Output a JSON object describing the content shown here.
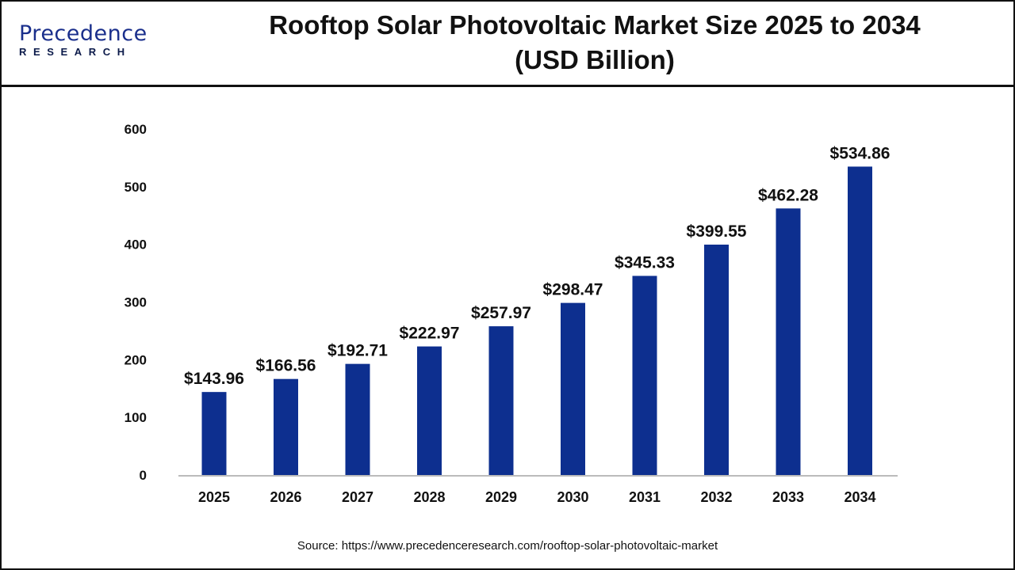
{
  "logo": {
    "main": "Precedence",
    "sub": "RESEARCH"
  },
  "title_line1": "Rooftop Solar Photovoltaic Market Size 2025 to 2034",
  "title_line2": "(USD Billion)",
  "source": "Source: https://www.precedenceresearch.com/rooftop-solar-photovoltaic-market",
  "chart_data": {
    "type": "bar",
    "title": "Rooftop Solar Photovoltaic Market Size 2025 to 2034 (USD Billion)",
    "categories": [
      "2025",
      "2026",
      "2027",
      "2028",
      "2029",
      "2030",
      "2031",
      "2032",
      "2033",
      "2034"
    ],
    "values": [
      143.96,
      166.56,
      192.71,
      222.97,
      257.97,
      298.47,
      345.33,
      399.55,
      462.28,
      534.86
    ],
    "data_labels": [
      "$143.96",
      "$166.56",
      "$192.71",
      "$222.97",
      "$257.97",
      "$298.47",
      "$345.33",
      "$399.55",
      "$462.28",
      "$534.86"
    ],
    "yticks": [
      0,
      100,
      200,
      300,
      400,
      500,
      600
    ],
    "ylim": [
      0,
      600
    ],
    "grid": false,
    "bar_color": "#0d2f8f"
  }
}
